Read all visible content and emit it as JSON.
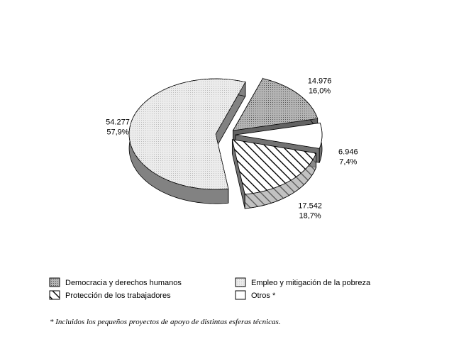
{
  "chart_data": {
    "type": "pie",
    "series": [
      {
        "name": "Democracia y derechos humanos",
        "color": "#b4b4b4",
        "values": [
          14976
        ],
        "value_labels": [
          "14.976"
        ],
        "percent_labels": [
          "16,0%"
        ]
      },
      {
        "name": "Otros *",
        "color": "#ffffff",
        "values": [
          6946
        ],
        "value_labels": [
          "6.946"
        ],
        "percent_labels": [
          "7,4%"
        ]
      },
      {
        "name": "Protección de los trabajadores",
        "color": "#ffffff",
        "values": [
          17542
        ],
        "value_labels": [
          "17.542"
        ],
        "percent_labels": [
          "18,7%"
        ]
      },
      {
        "name": "Empleo y mitigación de la pobreza",
        "color": "#ececec",
        "values": [
          54277
        ],
        "value_labels": [
          "54.277"
        ],
        "percent_labels": [
          "57,9%"
        ]
      }
    ],
    "legend_order": [
      0,
      3,
      2,
      1
    ],
    "footnote": "* Incluidos los pequeños proyectos de apoyo de distintas esferas técnicas."
  }
}
